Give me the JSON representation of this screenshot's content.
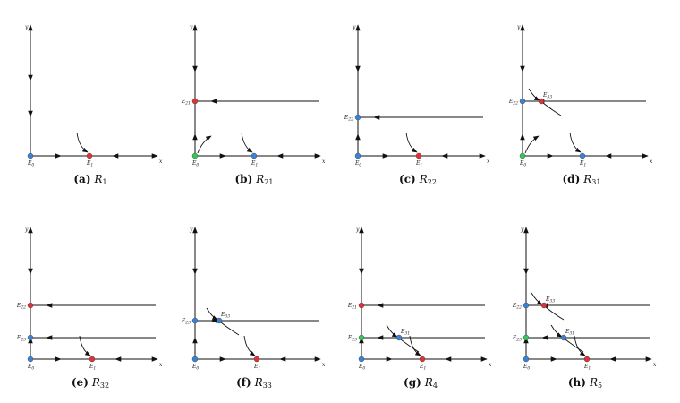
{
  "panels": [
    {
      "caption_tag": "(a)",
      "caption_sym": "R",
      "caption_sub": "1",
      "x_label": "x",
      "y_label": "y",
      "E0_color": "#3b82d6",
      "points": [
        {
          "label_main": "E",
          "label_sub": "1",
          "color": "#e0303a"
        }
      ]
    },
    {
      "caption_tag": "(b)",
      "caption_sym": "R",
      "caption_sub": "21",
      "x_label": "x",
      "y_label": "y",
      "E0_color": "#34c759",
      "points": [
        {
          "label_main": "E",
          "label_sub": "1",
          "color": "#3b82d6"
        },
        {
          "label_main": "E",
          "label_sub": "21",
          "color": "#e0303a"
        }
      ]
    },
    {
      "caption_tag": "(c)",
      "caption_sym": "R",
      "caption_sub": "22",
      "x_label": "x",
      "y_label": "y",
      "E0_color": "#3b82d6",
      "points": [
        {
          "label_main": "E",
          "label_sub": "1",
          "color": "#e0303a"
        },
        {
          "label_main": "E",
          "label_sub": "22",
          "color": "#3b82d6"
        }
      ]
    },
    {
      "caption_tag": "(d)",
      "caption_sym": "R",
      "caption_sub": "31",
      "x_label": "x",
      "y_label": "y",
      "E0_color": "#34c759",
      "points": [
        {
          "label_main": "E",
          "label_sub": "1",
          "color": "#3b82d6"
        },
        {
          "label_main": "E",
          "label_sub": "22",
          "color": "#3b82d6"
        },
        {
          "label_main": "E",
          "label_sub": "33",
          "color": "#e0303a"
        }
      ]
    },
    {
      "caption_tag": "(e)",
      "caption_sym": "R",
      "caption_sub": "32",
      "x_label": "x",
      "y_label": "y",
      "E0_color": "#3b82d6",
      "points": [
        {
          "label_main": "E",
          "label_sub": "1",
          "color": "#e0303a"
        },
        {
          "label_main": "E",
          "label_sub": "22",
          "color": "#e0303a"
        },
        {
          "label_main": "E",
          "label_sub": "23",
          "color": "#3b82d6"
        }
      ]
    },
    {
      "caption_tag": "(f)",
      "caption_sym": "R",
      "caption_sub": "33",
      "x_label": "x",
      "y_label": "y",
      "E0_color": "#3b82d6",
      "points": [
        {
          "label_main": "E",
          "label_sub": "1",
          "color": "#e0303a"
        },
        {
          "label_main": "E",
          "label_sub": "23",
          "color": "#3b82d6"
        },
        {
          "label_main": "E",
          "label_sub": "33",
          "color": "#3b82d6"
        }
      ]
    },
    {
      "caption_tag": "(g)",
      "caption_sym": "R",
      "caption_sub": "4",
      "x_label": "x",
      "y_label": "y",
      "E0_color": "#3b82d6",
      "points": [
        {
          "label_main": "E",
          "label_sub": "1",
          "color": "#e0303a"
        },
        {
          "label_main": "E",
          "label_sub": "21",
          "color": "#e0303a"
        },
        {
          "label_main": "E",
          "label_sub": "23",
          "color": "#34c759"
        },
        {
          "label_main": "E",
          "label_sub": "31",
          "color": "#3b82d6"
        }
      ]
    },
    {
      "caption_tag": "(h)",
      "caption_sym": "R",
      "caption_sub": "5",
      "x_label": "x",
      "y_label": "y",
      "E0_color": "#3b82d6",
      "points": [
        {
          "label_main": "E",
          "label_sub": "1",
          "color": "#e0303a"
        },
        {
          "label_main": "E",
          "label_sub": "22",
          "color": "#3b82d6"
        },
        {
          "label_main": "E",
          "label_sub": "23",
          "color": "#34c759"
        },
        {
          "label_main": "E",
          "label_sub": "31",
          "color": "#3b82d6"
        },
        {
          "label_main": "E",
          "label_sub": "33",
          "color": "#e0303a"
        }
      ]
    }
  ],
  "origin_label": {
    "main": "E",
    "sub": "0"
  }
}
